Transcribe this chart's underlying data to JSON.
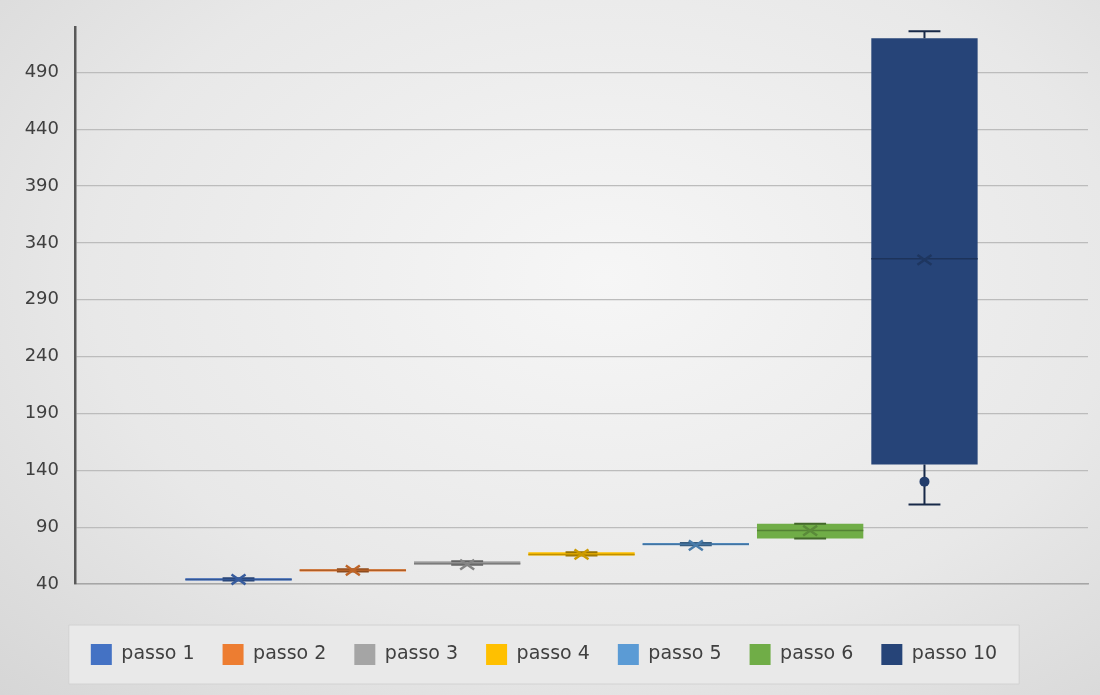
{
  "chart_data": {
    "type": "box",
    "categories": [
      null
    ],
    "ylim": [
      40,
      530
    ],
    "yticks": [
      40,
      90,
      140,
      190,
      240,
      290,
      340,
      390,
      440,
      490
    ],
    "grid": "y",
    "tick_labels": "y",
    "legend": "bottom",
    "series": [
      {
        "name": "passo 1",
        "color": "#4472c4",
        "boxes": [
          {
            "low": 43,
            "q1": 43,
            "median": 44,
            "q3": 45,
            "high": 45,
            "mean": 44
          }
        ]
      },
      {
        "name": "passo 2",
        "color": "#ed7d31",
        "boxes": [
          {
            "low": 51,
            "q1": 51,
            "median": 52,
            "q3": 53,
            "high": 53,
            "mean": 52
          }
        ]
      },
      {
        "name": "passo 3",
        "color": "#a5a5a5",
        "boxes": [
          {
            "low": 57,
            "q1": 57,
            "median": 58,
            "q3": 60,
            "high": 60,
            "mean": 57
          }
        ]
      },
      {
        "name": "passo 4",
        "color": "#ffc000",
        "boxes": [
          {
            "low": 65,
            "q1": 65,
            "median": 66,
            "q3": 68,
            "high": 68,
            "mean": 66
          }
        ]
      },
      {
        "name": "passo 5",
        "color": "#5b9bd5",
        "boxes": [
          {
            "low": 74,
            "q1": 74,
            "median": 75,
            "q3": 76,
            "high": 76,
            "mean": 74
          }
        ]
      },
      {
        "name": "passo 6",
        "color": "#70ad47",
        "boxes": [
          {
            "low": 80,
            "q1": 80,
            "median": 87,
            "q3": 93,
            "high": 93,
            "mean": 87
          }
        ]
      },
      {
        "name": "passo 10",
        "color": "#264478",
        "boxes": [
          {
            "low": 110,
            "q1": 145,
            "median": 326,
            "q3": 520,
            "high": 526,
            "mean": 325,
            "outliers": [
              130
            ]
          }
        ]
      }
    ]
  }
}
